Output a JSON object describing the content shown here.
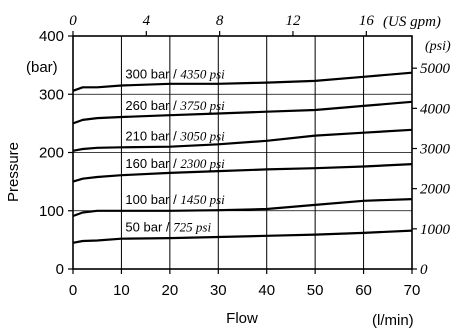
{
  "chart_data": {
    "type": "line",
    "title": "",
    "xlabel": "Flow",
    "xunit": "(l/min)",
    "ylabel": "Pressure",
    "yunit": "(bar)",
    "top_unit": "(US gpm)",
    "right_unit": "(psi)",
    "xlim": [
      0,
      70
    ],
    "ylim": [
      0,
      400
    ],
    "x_ticks": [
      0,
      10,
      20,
      30,
      40,
      50,
      60,
      70
    ],
    "y_ticks": [
      0,
      100,
      200,
      300,
      400
    ],
    "top_ticks": [
      {
        "label": "0",
        "flow_lmin": 0
      },
      {
        "label": "4",
        "flow_lmin": 15.14
      },
      {
        "label": "8",
        "flow_lmin": 30.28
      },
      {
        "label": "12",
        "flow_lmin": 45.42
      },
      {
        "label": "16",
        "flow_lmin": 60.57
      }
    ],
    "right_ticks": [
      {
        "label": "0",
        "bar": 0
      },
      {
        "label": "1000",
        "bar": 68.95
      },
      {
        "label": "2000",
        "bar": 137.9
      },
      {
        "label": "3000",
        "bar": 206.84
      },
      {
        "label": "4000",
        "bar": 275.79
      },
      {
        "label": "5000",
        "bar": 344.74
      }
    ],
    "grid": true,
    "series": [
      {
        "name_bar": "300 bar",
        "sep": " / ",
        "name_psi": "4350 psi",
        "x": [
          0,
          2,
          5,
          10,
          20,
          30,
          40,
          50,
          60,
          70
        ],
        "y": [
          306,
          312,
          312,
          315,
          318,
          318,
          320,
          323,
          330,
          337
        ]
      },
      {
        "name_bar": "260 bar",
        "sep": " / ",
        "name_psi": "3750 psi",
        "x": [
          0,
          2,
          5,
          10,
          20,
          30,
          40,
          50,
          60,
          70
        ],
        "y": [
          250,
          256,
          259,
          261,
          264,
          267,
          270,
          273,
          280,
          287
        ]
      },
      {
        "name_bar": "210 bar",
        "sep": " / ",
        "name_psi": "3050 psi",
        "x": [
          0,
          2,
          5,
          10,
          20,
          30,
          40,
          50,
          60,
          70
        ],
        "y": [
          203,
          206,
          208,
          209,
          210,
          214,
          220,
          229,
          234,
          239
        ]
      },
      {
        "name_bar": "160 bar",
        "sep": " / ",
        "name_psi": "2300 psi",
        "x": [
          0,
          2,
          5,
          10,
          20,
          30,
          40,
          50,
          60,
          70
        ],
        "y": [
          150,
          155,
          158,
          161,
          165,
          168,
          171,
          173,
          176,
          180
        ]
      },
      {
        "name_bar": "100 bar",
        "sep": " / ",
        "name_psi": "1450 psi",
        "x": [
          0,
          2,
          5,
          10,
          20,
          30,
          40,
          50,
          60,
          70
        ],
        "y": [
          91,
          97,
          100,
          100,
          100,
          101,
          103,
          110,
          117,
          120
        ]
      },
      {
        "name_bar": "50 bar",
        "sep": " / ",
        "name_psi": "725 psi",
        "x": [
          0,
          2,
          5,
          10,
          20,
          30,
          40,
          50,
          60,
          70
        ],
        "y": [
          45,
          48,
          49,
          52,
          53,
          55,
          57,
          59,
          62,
          66
        ]
      }
    ]
  }
}
